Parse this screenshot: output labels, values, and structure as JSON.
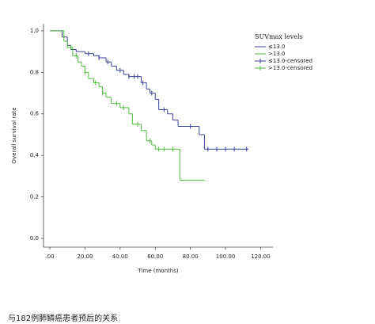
{
  "chart_data": {
    "type": "line",
    "step": true,
    "y_label": "Overall survival rate",
    "x_label": "Time (months)",
    "legend_title": "SUVmax levels",
    "caption": "与182例肺鳞癌患者预后的关系",
    "xlim": [
      -3.6,
      127
    ],
    "ylim": [
      -0.042,
      1.034
    ],
    "xticks": [
      {
        "value": 0,
        "label": ".00"
      },
      {
        "value": 20,
        "label": "20.00"
      },
      {
        "value": 40,
        "label": "40.00"
      },
      {
        "value": 60,
        "label": "60.00"
      },
      {
        "value": 80,
        "label": "80.00"
      },
      {
        "value": 100,
        "label": "100.00"
      },
      {
        "value": 120,
        "label": "120.00"
      }
    ],
    "yticks": [
      {
        "value": 0,
        "label": "0.0"
      },
      {
        "value": 0.2,
        "label": "0.2"
      },
      {
        "value": 0.4,
        "label": "0.4"
      },
      {
        "value": 0.6,
        "label": "0.6"
      },
      {
        "value": 0.8,
        "label": "0.8"
      },
      {
        "value": 1,
        "label": "1.0"
      }
    ],
    "series": [
      {
        "name": "≤13.0",
        "style": "line",
        "color": "#3b3f9c",
        "x": [
          0,
          7,
          10,
          12,
          15,
          20,
          25,
          28,
          32,
          35,
          38,
          42,
          45,
          52,
          55,
          57,
          60,
          62,
          67,
          70,
          73,
          85,
          88,
          113
        ],
        "values": [
          1.0,
          0.97,
          0.93,
          0.91,
          0.9,
          0.89,
          0.88,
          0.87,
          0.85,
          0.83,
          0.81,
          0.79,
          0.78,
          0.75,
          0.72,
          0.7,
          0.67,
          0.62,
          0.6,
          0.57,
          0.54,
          0.5,
          0.43,
          0.43
        ]
      },
      {
        "name": ">13.0",
        "style": "line",
        "color": "#4dbb3c",
        "x": [
          0,
          8,
          10,
          13,
          16,
          18,
          20,
          22,
          25,
          28,
          30,
          32,
          35,
          40,
          45,
          47,
          52,
          55,
          58,
          60,
          73,
          74,
          88
        ],
        "values": [
          1.0,
          0.95,
          0.92,
          0.88,
          0.85,
          0.83,
          0.8,
          0.77,
          0.75,
          0.73,
          0.7,
          0.68,
          0.65,
          0.63,
          0.6,
          0.55,
          0.52,
          0.47,
          0.45,
          0.43,
          0.43,
          0.28,
          0.28
        ]
      },
      {
        "name": "≤13.0-censored",
        "style": "censor",
        "color": "#3b3f9c",
        "x": [
          22,
          28,
          33,
          40,
          45,
          48,
          50,
          53,
          58,
          65,
          80,
          90,
          95,
          100,
          105,
          112
        ],
        "values": [
          0.89,
          0.87,
          0.85,
          0.81,
          0.78,
          0.78,
          0.78,
          0.75,
          0.7,
          0.62,
          0.54,
          0.43,
          0.43,
          0.43,
          0.43,
          0.43
        ]
      },
      {
        "name": ">13.0-censored",
        "style": "censor",
        "color": "#4dbb3c",
        "x": [
          12,
          15,
          20,
          26,
          30,
          38,
          42,
          50,
          57,
          62,
          65,
          70
        ],
        "values": [
          0.92,
          0.88,
          0.8,
          0.75,
          0.7,
          0.65,
          0.63,
          0.55,
          0.47,
          0.43,
          0.43,
          0.43
        ]
      }
    ]
  }
}
